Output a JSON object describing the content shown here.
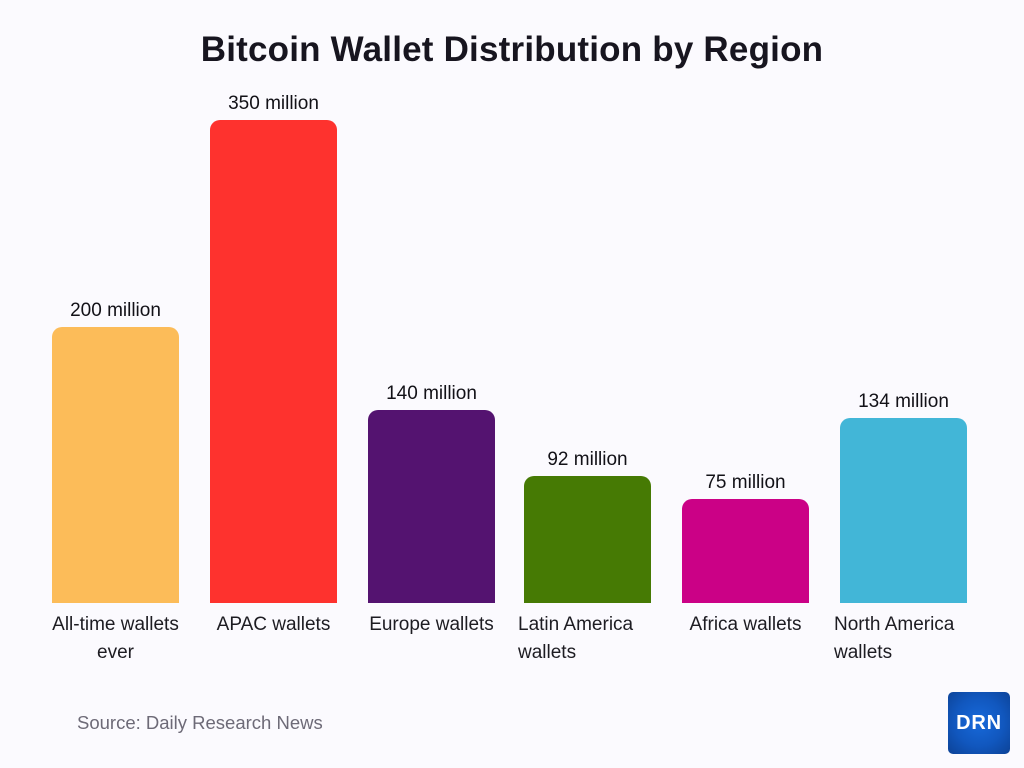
{
  "header": {
    "title": "Bitcoin Wallet Distribution by Region"
  },
  "footer": {
    "source": "Source: Daily Research News",
    "logo_text": "DRN"
  },
  "colors": {
    "background": "#FBFAFE",
    "title_text": "#17151F",
    "value_label_text": "#121117",
    "category_label_text": "#1D1C22",
    "source_text": "#6D6A77",
    "logo_blue_center": "#1769DA",
    "logo_blue_edge": "#0C4296"
  },
  "chart_data": {
    "type": "bar",
    "title": "Bitcoin Wallet Distribution by Region",
    "unit": "million wallets",
    "xlabel": "",
    "ylabel": "",
    "ylim": [
      0,
      350
    ],
    "grid": false,
    "legend": false,
    "source": "Source: Daily Research News",
    "categories": [
      "All-time wallets ever",
      "APAC wallets",
      "Europe wallets",
      "Latin America wallets",
      "Africa wallets",
      "North America wallets"
    ],
    "values": [
      200,
      350,
      140,
      92,
      75,
      134
    ],
    "bars": [
      {
        "category_lines": [
          "All-time wallets",
          "ever"
        ],
        "value": 200,
        "value_label": "200 million",
        "color": "#FCBC59",
        "label_align": "center"
      },
      {
        "category_lines": [
          "APAC wallets"
        ],
        "value": 350,
        "value_label": "350 million",
        "color": "#FE322E",
        "label_align": "center"
      },
      {
        "category_lines": [
          "Europe wallets"
        ],
        "value": 140,
        "value_label": "140 million",
        "color": "#541370",
        "label_align": "center"
      },
      {
        "category_lines": [
          "Latin America",
          "wallets"
        ],
        "value": 92,
        "value_label": "92 million",
        "color": "#467A04",
        "label_align": "left"
      },
      {
        "category_lines": [
          "Africa wallets"
        ],
        "value": 75,
        "value_label": "75 million",
        "color": "#CB0186",
        "label_align": "center"
      },
      {
        "category_lines": [
          "North America",
          "wallets"
        ],
        "value": 134,
        "value_label": "134 million",
        "color": "#42B6D7",
        "label_align": "left"
      }
    ]
  }
}
